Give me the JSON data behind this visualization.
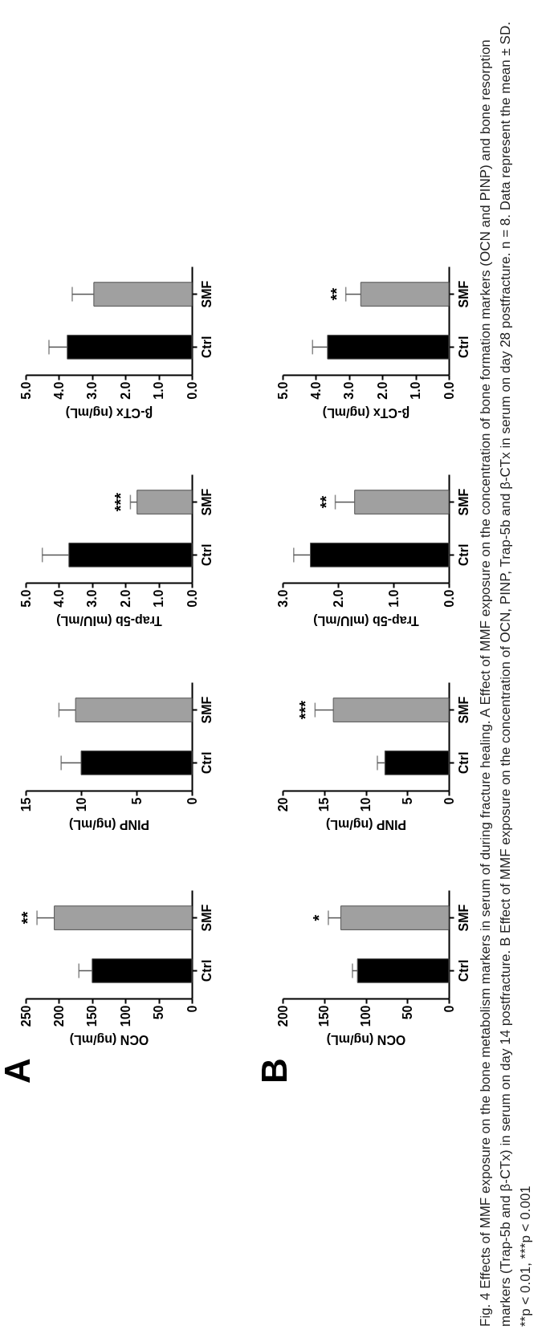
{
  "chart_data": [
    {
      "type": "bar",
      "orientation": "horizontal",
      "title": "A",
      "categories": [
        "SMF",
        "Ctrl"
      ],
      "values": [
        207,
        150
      ],
      "errors": [
        26,
        20
      ],
      "colors": [
        "#a0a0a0",
        "#000000"
      ],
      "xlabel": "OCN (ng/mL)",
      "xlim": [
        250,
        0
      ],
      "xticks": [
        250,
        200,
        150,
        100,
        50,
        0
      ],
      "annotations": [
        {
          "text": "**",
          "x": 233,
          "y": "SMF"
        }
      ]
    },
    {
      "type": "bar",
      "orientation": "horizontal",
      "categories": [
        "SMF",
        "Ctrl"
      ],
      "values": [
        10.5,
        10
      ],
      "errors": [
        1.5,
        1.8
      ],
      "colors": [
        "#a0a0a0",
        "#000000"
      ],
      "xlabel": "PINP (ng/mL)",
      "xlim": [
        15,
        0
      ],
      "xticks": [
        15,
        10,
        5,
        0
      ]
    },
    {
      "type": "bar",
      "orientation": "horizontal",
      "categories": [
        "SMF",
        "Ctrl"
      ],
      "values": [
        1.65,
        3.7
      ],
      "errors": [
        0.2,
        0.8
      ],
      "colors": [
        "#a0a0a0",
        "#000000"
      ],
      "xlabel": "Trap-5b (mIU/mL)",
      "xlim": [
        5,
        0
      ],
      "xticks": [
        {
          "value": 5,
          "label": "5.0"
        },
        {
          "value": 4,
          "label": "4.0"
        },
        {
          "value": 3,
          "label": "3.0"
        },
        {
          "value": 2,
          "label": "2.0"
        },
        {
          "value": 1,
          "label": "1.0"
        },
        {
          "value": 0,
          "label": "0.0"
        }
      ],
      "annotations": [
        {
          "text": "***",
          "x": 1.85,
          "y": "SMF"
        }
      ]
    },
    {
      "type": "bar",
      "orientation": "horizontal",
      "categories": [
        "SMF",
        "Ctrl"
      ],
      "values": [
        2.95,
        3.75
      ],
      "errors": [
        0.65,
        0.55
      ],
      "colors": [
        "#a0a0a0",
        "#000000"
      ],
      "xlabel": "β-CTx (ng/mL)",
      "xlim": [
        5,
        0
      ],
      "xticks": [
        {
          "value": 5,
          "label": "5.0"
        },
        {
          "value": 4,
          "label": "4.0"
        },
        {
          "value": 3,
          "label": "3.0"
        },
        {
          "value": 2,
          "label": "2.0"
        },
        {
          "value": 1,
          "label": "1.0"
        },
        {
          "value": 0,
          "label": "0.0"
        }
      ]
    },
    {
      "type": "bar",
      "orientation": "horizontal",
      "title": "B",
      "categories": [
        "SMF",
        "Ctrl"
      ],
      "values": [
        130,
        110
      ],
      "errors": [
        15,
        6
      ],
      "colors": [
        "#a0a0a0",
        "#000000"
      ],
      "xlabel": "OCN (ng/mL)",
      "xlim": [
        200,
        0
      ],
      "xticks": [
        200,
        150,
        100,
        50,
        0
      ],
      "annotations": [
        {
          "text": "*",
          "x": 145,
          "y": "SMF"
        }
      ]
    },
    {
      "type": "bar",
      "orientation": "horizontal",
      "categories": [
        "SMF",
        "Ctrl"
      ],
      "values": [
        13.9,
        7.7
      ],
      "errors": [
        2.2,
        0.9
      ],
      "colors": [
        "#a0a0a0",
        "#000000"
      ],
      "xlabel": "PINP (ng/mL)",
      "xlim": [
        20,
        0
      ],
      "xticks": [
        20,
        15,
        10,
        5,
        0
      ],
      "annotations": [
        {
          "text": "***",
          "x": 16.1,
          "y": "SMF"
        }
      ]
    },
    {
      "type": "bar",
      "orientation": "horizontal",
      "categories": [
        "SMF",
        "Ctrl"
      ],
      "values": [
        1.7,
        2.5
      ],
      "errors": [
        0.35,
        0.3
      ],
      "colors": [
        "#a0a0a0",
        "#000000"
      ],
      "xlabel": "Trap-5b (mIU/mL)",
      "xlim": [
        3,
        0
      ],
      "xticks": [
        {
          "value": 3,
          "label": "3.0"
        },
        {
          "value": 2,
          "label": "2.0"
        },
        {
          "value": 1,
          "label": "1.0"
        },
        {
          "value": 0,
          "label": "0.0"
        }
      ],
      "annotations": [
        {
          "text": "**",
          "x": 2.05,
          "y": "SMF"
        }
      ]
    },
    {
      "type": "bar",
      "orientation": "horizontal",
      "categories": [
        "SMF",
        "Ctrl"
      ],
      "values": [
        2.65,
        3.65
      ],
      "errors": [
        0.45,
        0.45
      ],
      "colors": [
        "#a0a0a0",
        "#000000"
      ],
      "xlabel": "β-CTx (ng/mL)",
      "xlim": [
        5,
        0
      ],
      "xticks": [
        {
          "value": 5,
          "label": "5.0"
        },
        {
          "value": 4,
          "label": "4.0"
        },
        {
          "value": 3,
          "label": "3.0"
        },
        {
          "value": 2,
          "label": "2.0"
        },
        {
          "value": 1,
          "label": "1.0"
        },
        {
          "value": 0,
          "label": "0.0"
        }
      ],
      "annotations": [
        {
          "text": "**",
          "x": 3.1,
          "y": "SMF"
        }
      ]
    },
    {
      "type": "other",
      "annotations": [
        "Fig. 4 Effects of MMF exposure on the bone metabolism markers in serum of during fracture healing. A Effect of MMF exposure on the concentration of bone formation markers (OCN and PINP) and bone resorption markers (Trap-5b and β-CTx) in serum on day 14 postfracture. B Effect of MMF exposure on the concentration of OCN, PINP, Trap-5b and β-CTx in serum on day 28 postfracture. n = 8. Data represent the mean ± SD. **p < 0.01, ***p < 0.001"
      ]
    }
  ]
}
